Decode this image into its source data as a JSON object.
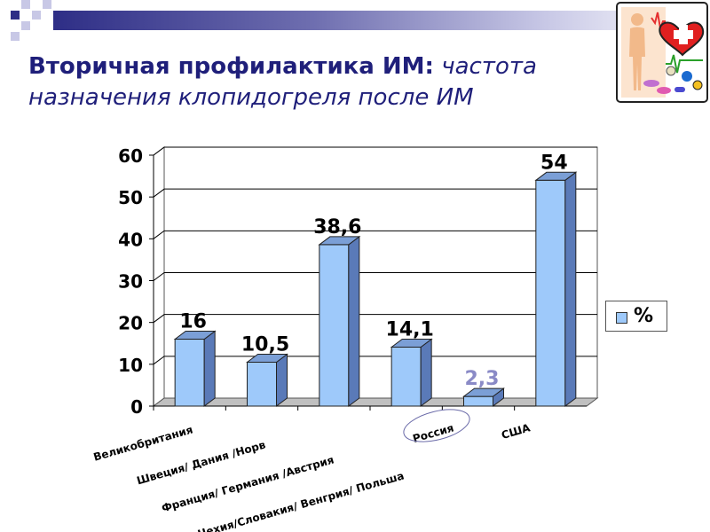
{
  "title": {
    "bold_part": "Вторичная профилактика ИМ:",
    "italic_part": "частота назначения клопидогреля после ИМ"
  },
  "colors": {
    "title": "#1f1f7a",
    "bar_front": "#9ec9fa",
    "bar_side": "#5a7ab8",
    "bar_top": "#7b9fd6",
    "highlight_label": "#8a8ac6"
  },
  "decor": {
    "logo_icon": "health-medical-icon",
    "highlight_ellipse_category": "Россия"
  },
  "chart_data": {
    "type": "bar",
    "title": "",
    "xlabel": "",
    "ylabel": "",
    "ylim": [
      0,
      60
    ],
    "y_ticks": [
      "0",
      "10",
      "20",
      "30",
      "40",
      "50",
      "60"
    ],
    "grid": true,
    "style": "3d",
    "legend_position": "right",
    "categories": [
      "Великобритания",
      "Швеция/ Дания /Норв",
      "Франция/ Германия /Австрия",
      "Чехия/Словакия/ Венгрия/ Польша",
      "Россия",
      "США"
    ],
    "series": [
      {
        "name": "%",
        "values": [
          16,
          10.5,
          38.6,
          14.1,
          2.3,
          54
        ],
        "labels": [
          "16",
          "10,5",
          "38,6",
          "14,1",
          "2,3",
          "54"
        ]
      }
    ]
  }
}
